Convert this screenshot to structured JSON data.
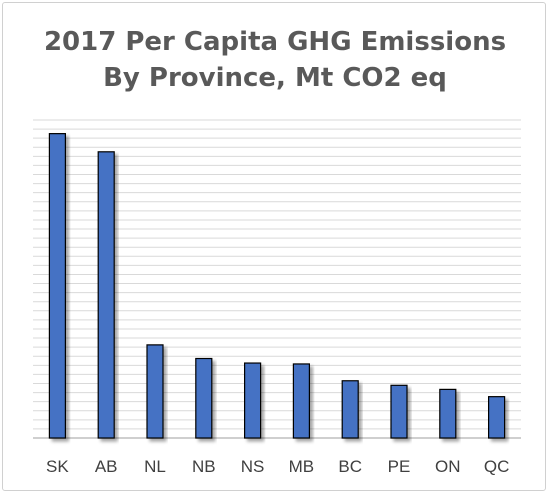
{
  "chart_data": {
    "type": "bar",
    "title_line1": "2017 Per Capita GHG Emissions",
    "title_line2": "By Province, Mt CO2 eq",
    "categories": [
      "SK",
      "AB",
      "NL",
      "NB",
      "NS",
      "MB",
      "BC",
      "PE",
      "ON",
      "QC"
    ],
    "values": [
      67,
      63,
      20.5,
      17.5,
      16.5,
      16.3,
      12.6,
      11.6,
      10.7,
      9.1
    ],
    "ylim": [
      0,
      70
    ],
    "grid": true,
    "legend": "none",
    "colors": {
      "bar": "#4472C4",
      "bar_stroke": "#000000",
      "grid": "#d9d9d9",
      "axis": "#bfbfbf"
    }
  }
}
